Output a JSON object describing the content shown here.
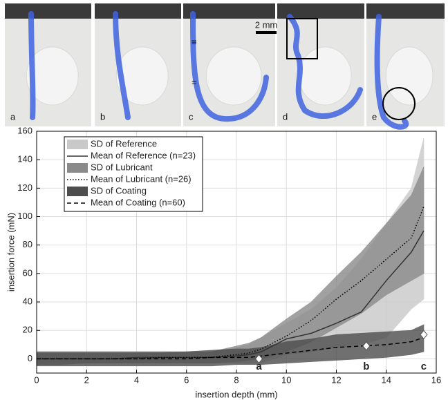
{
  "photos": [
    {
      "label": "a"
    },
    {
      "label": "b"
    },
    {
      "label": "c",
      "annotations": [
        "≡",
        "="
      ]
    },
    {
      "label": "d"
    },
    {
      "label": "e"
    }
  ],
  "scale_bar": "2 mm",
  "chart_data": {
    "type": "band-line",
    "xlabel": "insertion depth (mm)",
    "ylabel": "insertion force (mN)",
    "xlim": [
      0,
      16
    ],
    "xticks": [
      0,
      2,
      4,
      6,
      8,
      10,
      12,
      14,
      16
    ],
    "ylim": [
      -10,
      160
    ],
    "yticks": [
      0,
      20,
      40,
      60,
      80,
      100,
      120,
      140,
      160
    ],
    "grid": true,
    "legend": "upper-left",
    "x": [
      0,
      1,
      2,
      3,
      4,
      5,
      6,
      7,
      8,
      8.5,
      9,
      10,
      11,
      12,
      13,
      14,
      15,
      15.5
    ],
    "series": [
      {
        "name": "SD of Reference",
        "kind": "band",
        "color": "#c9c9c9",
        "upper": [
          3,
          3,
          3,
          3,
          4,
          4,
          4,
          5,
          8,
          10,
          15,
          25,
          35,
          50,
          70,
          95,
          120,
          155
        ],
        "lower": [
          -3,
          -3,
          -3,
          -3,
          -2,
          -2,
          -2,
          -3,
          -3,
          -3,
          -3,
          3,
          5,
          8,
          10,
          15,
          35,
          42
        ]
      },
      {
        "name": "Mean of Reference (n=23)",
        "kind": "line",
        "color": "#333333",
        "dash": "solid",
        "values": [
          0,
          0,
          0,
          0,
          1,
          1,
          1,
          1,
          2,
          3,
          5,
          14,
          18,
          25,
          33,
          55,
          75,
          90
        ]
      },
      {
        "name": "SD of Lubricant",
        "kind": "band",
        "color": "#8a8a8a",
        "upper": [
          4,
          4,
          4,
          4,
          4,
          4,
          5,
          5,
          9,
          11,
          15,
          28,
          40,
          58,
          75,
          95,
          115,
          135
        ],
        "lower": [
          -4,
          -4,
          -3,
          -3,
          -3,
          -3,
          -3,
          -3,
          -2,
          -1,
          0,
          5,
          12,
          22,
          32,
          45,
          55,
          60
        ]
      },
      {
        "name": "Mean of Lubricant (n=26)",
        "kind": "line",
        "color": "#000000",
        "dash": "dotted",
        "values": [
          0,
          0,
          0,
          0,
          0,
          1,
          1,
          1,
          3,
          4,
          7,
          16,
          27,
          42,
          55,
          70,
          85,
          107
        ]
      },
      {
        "name": "SD of Coating",
        "kind": "band",
        "color": "#4d4d4d",
        "upper": [
          5,
          5,
          5,
          5,
          5,
          5,
          5,
          6,
          7,
          7,
          8,
          12,
          14,
          17,
          18,
          19,
          20,
          24
        ],
        "lower": [
          -5,
          -5,
          -5,
          -5,
          -5,
          -5,
          -5,
          -5,
          -4,
          -4,
          -4,
          -3,
          -2,
          -1,
          0,
          1,
          3,
          5
        ]
      },
      {
        "name": "Mean of Coating (n=60)",
        "kind": "line",
        "color": "#000000",
        "dash": "dashed",
        "values": [
          0,
          0,
          0,
          0,
          0,
          0,
          0,
          1,
          1,
          1,
          2,
          4,
          6,
          8,
          9,
          10,
          12,
          15
        ]
      }
    ],
    "markers": [
      {
        "x": 8.9,
        "y": 0,
        "label": "a"
      },
      {
        "x": 13.2,
        "y": 9,
        "label": "b"
      },
      {
        "x": 15.5,
        "y": 17,
        "label": "c"
      }
    ]
  }
}
